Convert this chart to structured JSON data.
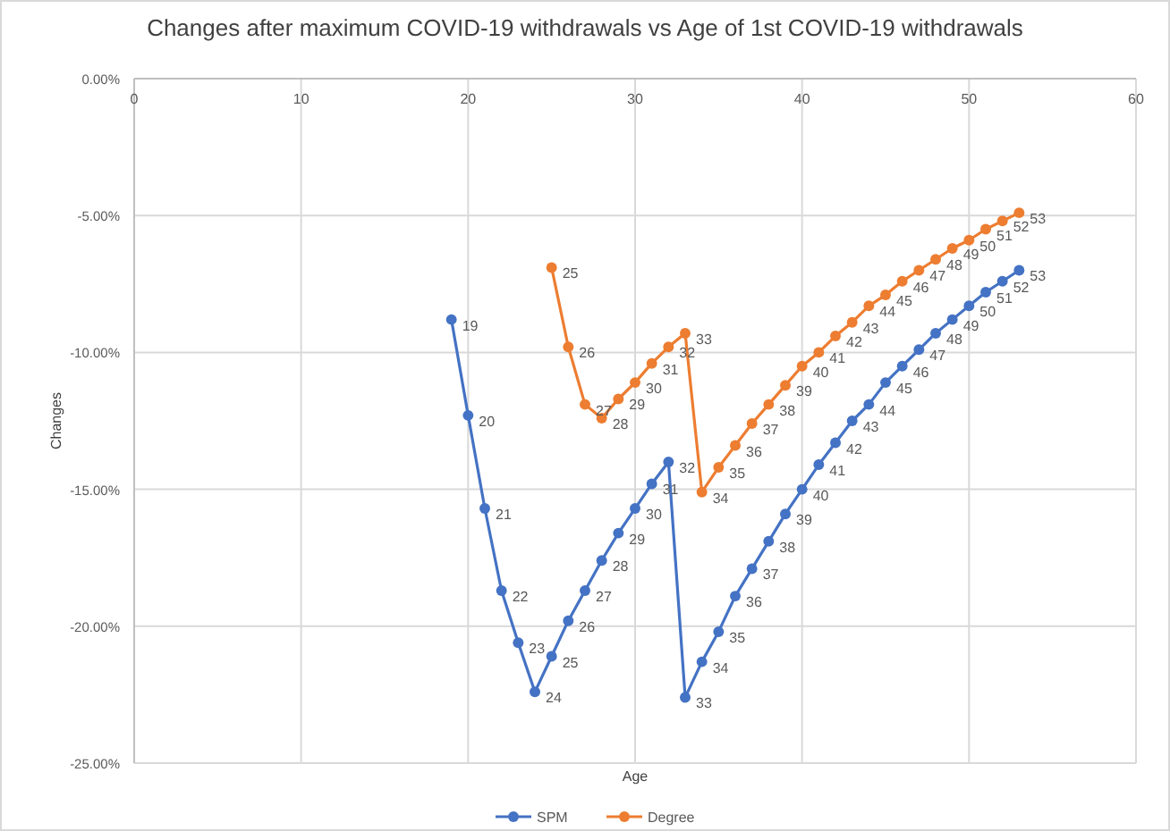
{
  "chart_data": {
    "type": "line",
    "title": "Changes after maximum COVID-19 withdrawals vs Age of 1st COVID-19 withdrawals",
    "xlabel": "Age",
    "ylabel": "Changes",
    "xlim": [
      0,
      60
    ],
    "xticks": [
      0,
      10,
      20,
      30,
      40,
      50,
      60
    ],
    "ylim": [
      -25,
      0
    ],
    "yticks": [
      {
        "value": -25,
        "label": "-25.00%"
      },
      {
        "value": -20,
        "label": "-20.00%"
      },
      {
        "value": -15,
        "label": "-15.00%"
      },
      {
        "value": -10,
        "label": "-10.00%"
      },
      {
        "value": -5,
        "label": "-5.00%"
      },
      {
        "value": 0,
        "label": "0.00%"
      }
    ],
    "grid": true,
    "legend": "bottom",
    "marker": "circle",
    "line_style": "solid",
    "series": [
      {
        "name": "SPM",
        "color": "#4472c4",
        "x": [
          19,
          20,
          21,
          22,
          23,
          24,
          25,
          26,
          27,
          28,
          29,
          30,
          31,
          32,
          33,
          34,
          35,
          36,
          37,
          38,
          39,
          40,
          41,
          42,
          43,
          44,
          45,
          46,
          47,
          48,
          49,
          50,
          51,
          52,
          53
        ],
        "values": [
          -8.8,
          -12.3,
          -15.7,
          -18.7,
          -20.6,
          -22.4,
          -21.1,
          -19.8,
          -18.7,
          -17.6,
          -16.6,
          -15.7,
          -14.8,
          -14.0,
          -22.6,
          -21.3,
          -20.2,
          -18.9,
          -17.9,
          -16.9,
          -15.9,
          -15.0,
          -14.1,
          -13.3,
          -12.5,
          -11.9,
          -11.1,
          -10.5,
          -9.9,
          -9.3,
          -8.8,
          -8.3,
          -7.8,
          -7.4,
          -7.0
        ]
      },
      {
        "name": "Degree",
        "color": "#ed7d31",
        "x": [
          25,
          26,
          27,
          28,
          29,
          30,
          31,
          32,
          33,
          34,
          35,
          36,
          37,
          38,
          39,
          40,
          41,
          42,
          43,
          44,
          45,
          46,
          47,
          48,
          49,
          50,
          51,
          52,
          53
        ],
        "values": [
          -6.9,
          -9.8,
          -11.9,
          -12.4,
          -11.7,
          -11.1,
          -10.4,
          -9.8,
          -9.3,
          -15.1,
          -14.2,
          -13.4,
          -12.6,
          -11.9,
          -11.2,
          -10.5,
          -10.0,
          -9.4,
          -8.9,
          -8.3,
          -7.9,
          -7.4,
          -7.0,
          -6.6,
          -6.2,
          -5.9,
          -5.5,
          -5.2,
          -4.9
        ]
      }
    ],
    "annotations": [
      {
        "text": "19",
        "x": 19,
        "y": -8.8
      },
      {
        "text": "20",
        "x": 20,
        "y": -12.3
      },
      {
        "text": "21",
        "x": 21,
        "y": -15.7
      },
      {
        "text": "22",
        "x": 22,
        "y": -18.7
      },
      {
        "text": "23",
        "x": 23,
        "y": -20.6
      },
      {
        "text": "24",
        "x": 24,
        "y": -22.4
      },
      {
        "text": "25",
        "x": 25,
        "y": -21.1
      },
      {
        "text": "26",
        "x": 26,
        "y": -19.8
      },
      {
        "text": "27",
        "x": 27,
        "y": -18.7
      },
      {
        "text": "28",
        "x": 28,
        "y": -17.6
      },
      {
        "text": "29",
        "x": 29,
        "y": -16.6
      },
      {
        "text": "30",
        "x": 30,
        "y": -15.7
      },
      {
        "text": "31",
        "x": 31,
        "y": -14.8
      },
      {
        "text": "32",
        "x": 32,
        "y": -14.0
      },
      {
        "text": "33",
        "x": 33,
        "y": -22.6
      },
      {
        "text": "34",
        "x": 34,
        "y": -21.3
      },
      {
        "text": "35",
        "x": 35,
        "y": -20.2
      },
      {
        "text": "36",
        "x": 36,
        "y": -18.9
      },
      {
        "text": "37",
        "x": 37,
        "y": -17.9
      },
      {
        "text": "38",
        "x": 38,
        "y": -16.9
      },
      {
        "text": "39",
        "x": 39,
        "y": -15.9
      },
      {
        "text": "40",
        "x": 40,
        "y": -15.0
      },
      {
        "text": "41",
        "x": 41,
        "y": -14.1
      },
      {
        "text": "42",
        "x": 42,
        "y": -13.3
      },
      {
        "text": "43",
        "x": 43,
        "y": -12.5
      },
      {
        "text": "44",
        "x": 44,
        "y": -11.9
      },
      {
        "text": "45",
        "x": 45,
        "y": -11.1
      },
      {
        "text": "46",
        "x": 46,
        "y": -10.5
      },
      {
        "text": "47",
        "x": 47,
        "y": -9.9
      },
      {
        "text": "48",
        "x": 48,
        "y": -9.3
      },
      {
        "text": "49",
        "x": 49,
        "y": -8.8
      },
      {
        "text": "50",
        "x": 50,
        "y": -8.3
      },
      {
        "text": "51",
        "x": 51,
        "y": -7.8
      },
      {
        "text": "52",
        "x": 52,
        "y": -7.4
      },
      {
        "text": "53",
        "x": 53,
        "y": -7.0
      },
      {
        "text": "25",
        "x": 25,
        "y": -6.9
      },
      {
        "text": "26",
        "x": 26,
        "y": -9.8
      },
      {
        "text": "27",
        "x": 27,
        "y": -11.9
      },
      {
        "text": "28",
        "x": 28,
        "y": -12.4
      },
      {
        "text": "29",
        "x": 29,
        "y": -11.7
      },
      {
        "text": "30",
        "x": 30,
        "y": -11.1
      },
      {
        "text": "31",
        "x": 31,
        "y": -10.4
      },
      {
        "text": "32",
        "x": 32,
        "y": -9.8
      },
      {
        "text": "33",
        "x": 33,
        "y": -9.3
      },
      {
        "text": "34",
        "x": 34,
        "y": -15.1
      },
      {
        "text": "35",
        "x": 35,
        "y": -14.2
      },
      {
        "text": "36",
        "x": 36,
        "y": -13.4
      },
      {
        "text": "37",
        "x": 37,
        "y": -12.6
      },
      {
        "text": "38",
        "x": 38,
        "y": -11.9
      },
      {
        "text": "39",
        "x": 39,
        "y": -11.2
      },
      {
        "text": "40",
        "x": 40,
        "y": -10.5
      },
      {
        "text": "41",
        "x": 41,
        "y": -10.0
      },
      {
        "text": "42",
        "x": 42,
        "y": -9.4
      },
      {
        "text": "43",
        "x": 43,
        "y": -8.9
      },
      {
        "text": "44",
        "x": 44,
        "y": -8.3
      },
      {
        "text": "45",
        "x": 45,
        "y": -7.9
      },
      {
        "text": "46",
        "x": 46,
        "y": -7.4
      },
      {
        "text": "47",
        "x": 47,
        "y": -7.0
      },
      {
        "text": "48",
        "x": 48,
        "y": -6.6
      },
      {
        "text": "49",
        "x": 49,
        "y": -6.2
      },
      {
        "text": "50",
        "x": 50,
        "y": -5.9
      },
      {
        "text": "51",
        "x": 51,
        "y": -5.5
      },
      {
        "text": "52",
        "x": 52,
        "y": -5.2
      },
      {
        "text": "53",
        "x": 53,
        "y": -4.9
      }
    ]
  }
}
